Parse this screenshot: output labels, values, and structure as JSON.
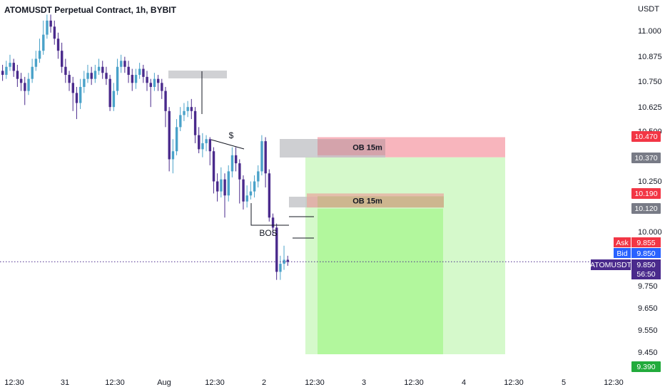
{
  "chart_data": {
    "type": "candlestick",
    "title": "ATOMUSDT Perpetual Contract, 1h, BYBIT",
    "currency_label": "USDT",
    "y_ticks": [
      "11.000",
      "10.875",
      "10.750",
      "10.625",
      "10.500",
      "10.250",
      "10.000",
      "9.750",
      "9.650",
      "9.550",
      "9.450"
    ],
    "x_ticks": [
      "12:30",
      "31",
      "12:30",
      "Aug",
      "12:30",
      "2",
      "12:30",
      "3",
      "12:30",
      "4",
      "12:30",
      "5",
      "12:30"
    ],
    "price_tags": [
      {
        "label": "10.470",
        "price": 10.47,
        "color": "#f23645"
      },
      {
        "label": "10.370",
        "price": 10.37,
        "color": "#787b86"
      },
      {
        "label": "10.190",
        "price": 10.19,
        "color": "#f23645"
      },
      {
        "label": "10.120",
        "price": 10.12,
        "color": "#787b86"
      },
      {
        "label": "9.390",
        "price": 9.39,
        "color": "#22ab3c"
      }
    ],
    "quote": {
      "ask_label": "Ask",
      "ask": "9.855",
      "bid_label": "Bid",
      "bid": "9.850",
      "symbol": "ATOMUSDT",
      "last": "9.850",
      "countdown": "56:50",
      "ask_color": "#f23645",
      "bid_color": "#2962ff",
      "symbol_color": "#4a2a8c"
    },
    "zones": [
      {
        "label": "OB 15m",
        "top": 10.46,
        "bottom": 10.38
      },
      {
        "label": "OB 15m",
        "top": 10.19,
        "bottom": 10.12
      }
    ],
    "annotations": [
      "$",
      "BOS"
    ],
    "position": {
      "entry": 10.37,
      "stop": 10.47,
      "target": 9.39
    },
    "colors": {
      "up": "#4aa2c9",
      "down": "#4a2a8c",
      "stop_zone": "#f7a8b2",
      "target_zone": "#b9f5a8"
    },
    "candles": [
      [
        10.8,
        10.78,
        10.83,
        10.75
      ],
      [
        10.78,
        10.82,
        10.85,
        10.76
      ],
      [
        10.82,
        10.84,
        10.88,
        10.8
      ],
      [
        10.84,
        10.8,
        10.86,
        10.77
      ],
      [
        10.8,
        10.76,
        10.83,
        10.72
      ],
      [
        10.76,
        10.74,
        10.79,
        10.7
      ],
      [
        10.74,
        10.7,
        10.77,
        10.63
      ],
      [
        10.7,
        10.76,
        10.79,
        10.68
      ],
      [
        10.76,
        10.82,
        10.86,
        10.74
      ],
      [
        10.82,
        10.86,
        10.9,
        10.8
      ],
      [
        10.86,
        10.9,
        10.96,
        10.84
      ],
      [
        10.9,
        10.98,
        11.05,
        10.88
      ],
      [
        10.98,
        11.05,
        11.08,
        10.96
      ],
      [
        11.05,
        11.02,
        11.08,
        10.99
      ],
      [
        11.02,
        10.96,
        11.05,
        10.93
      ],
      [
        10.96,
        10.9,
        10.99,
        10.86
      ],
      [
        10.9,
        10.82,
        10.94,
        10.79
      ],
      [
        10.82,
        10.78,
        10.86,
        10.74
      ],
      [
        10.78,
        10.74,
        10.8,
        10.7
      ],
      [
        10.74,
        10.69,
        10.77,
        10.6
      ],
      [
        10.69,
        10.64,
        10.72,
        10.56
      ],
      [
        10.64,
        10.72,
        10.76,
        10.61
      ],
      [
        10.72,
        10.76,
        10.8,
        10.69
      ],
      [
        10.76,
        10.79,
        10.83,
        10.74
      ],
      [
        10.79,
        10.76,
        10.82,
        10.73
      ],
      [
        10.76,
        10.8,
        10.83,
        10.74
      ],
      [
        10.8,
        10.82,
        10.86,
        10.78
      ],
      [
        10.82,
        10.79,
        10.85,
        10.76
      ],
      [
        10.79,
        10.76,
        10.82,
        10.73
      ],
      [
        10.76,
        10.62,
        10.78,
        10.6
      ],
      [
        10.62,
        10.7,
        10.74,
        10.6
      ],
      [
        10.7,
        10.82,
        10.86,
        10.68
      ],
      [
        10.82,
        10.85,
        10.88,
        10.79
      ],
      [
        10.85,
        10.82,
        10.87,
        10.79
      ],
      [
        10.82,
        10.78,
        10.85,
        10.74
      ],
      [
        10.78,
        10.74,
        10.81,
        10.7
      ],
      [
        10.74,
        10.78,
        10.81,
        10.71
      ],
      [
        10.78,
        10.81,
        10.84,
        10.76
      ],
      [
        10.81,
        10.77,
        10.83,
        10.74
      ],
      [
        10.77,
        10.74,
        10.8,
        10.7
      ],
      [
        10.74,
        10.72,
        10.76,
        10.62
      ],
      [
        10.72,
        10.76,
        10.79,
        10.7
      ],
      [
        10.76,
        10.74,
        10.78,
        10.7
      ],
      [
        10.74,
        10.7,
        10.76,
        10.66
      ],
      [
        10.7,
        10.6,
        10.72,
        10.52
      ],
      [
        10.6,
        10.36,
        10.62,
        10.3
      ],
      [
        10.36,
        10.4,
        10.46,
        10.29
      ],
      [
        10.4,
        10.52,
        10.56,
        10.38
      ],
      [
        10.52,
        10.58,
        10.62,
        10.5
      ],
      [
        10.58,
        10.6,
        10.64,
        10.55
      ],
      [
        10.6,
        10.62,
        10.65,
        10.57
      ],
      [
        10.62,
        10.6,
        10.66,
        10.56
      ],
      [
        10.6,
        10.48,
        10.62,
        10.44
      ],
      [
        10.48,
        10.41,
        10.52,
        10.39
      ],
      [
        10.41,
        10.44,
        10.49,
        10.37
      ],
      [
        10.44,
        10.46,
        10.48,
        10.4
      ],
      [
        10.46,
        10.4,
        10.47,
        10.33
      ],
      [
        10.4,
        10.25,
        10.42,
        10.19
      ],
      [
        10.25,
        10.2,
        10.29,
        10.15
      ],
      [
        10.2,
        10.26,
        10.32,
        10.17
      ],
      [
        10.26,
        10.18,
        10.29,
        10.07
      ],
      [
        10.18,
        10.3,
        10.33,
        10.15
      ],
      [
        10.3,
        10.38,
        10.42,
        10.27
      ],
      [
        10.38,
        10.34,
        10.42,
        10.3
      ],
      [
        10.34,
        10.26,
        10.36,
        10.14
      ],
      [
        10.26,
        10.15,
        10.28,
        10.11
      ],
      [
        10.15,
        10.18,
        10.23,
        10.12
      ],
      [
        10.18,
        10.2,
        10.25,
        10.16
      ],
      [
        10.2,
        10.25,
        10.28,
        10.17
      ],
      [
        10.25,
        10.3,
        10.33,
        10.22
      ],
      [
        10.3,
        10.45,
        10.48,
        10.28
      ],
      [
        10.45,
        10.29,
        10.47,
        10.22
      ],
      [
        10.29,
        10.07,
        10.31,
        10.05
      ],
      [
        10.07,
        10.02,
        10.09,
        9.98
      ],
      [
        10.02,
        9.8,
        10.04,
        9.76
      ],
      [
        9.8,
        9.84,
        9.88,
        9.76
      ],
      [
        9.84,
        9.86,
        9.93,
        9.81
      ],
      [
        9.86,
        9.85,
        9.88,
        9.83
      ]
    ]
  }
}
